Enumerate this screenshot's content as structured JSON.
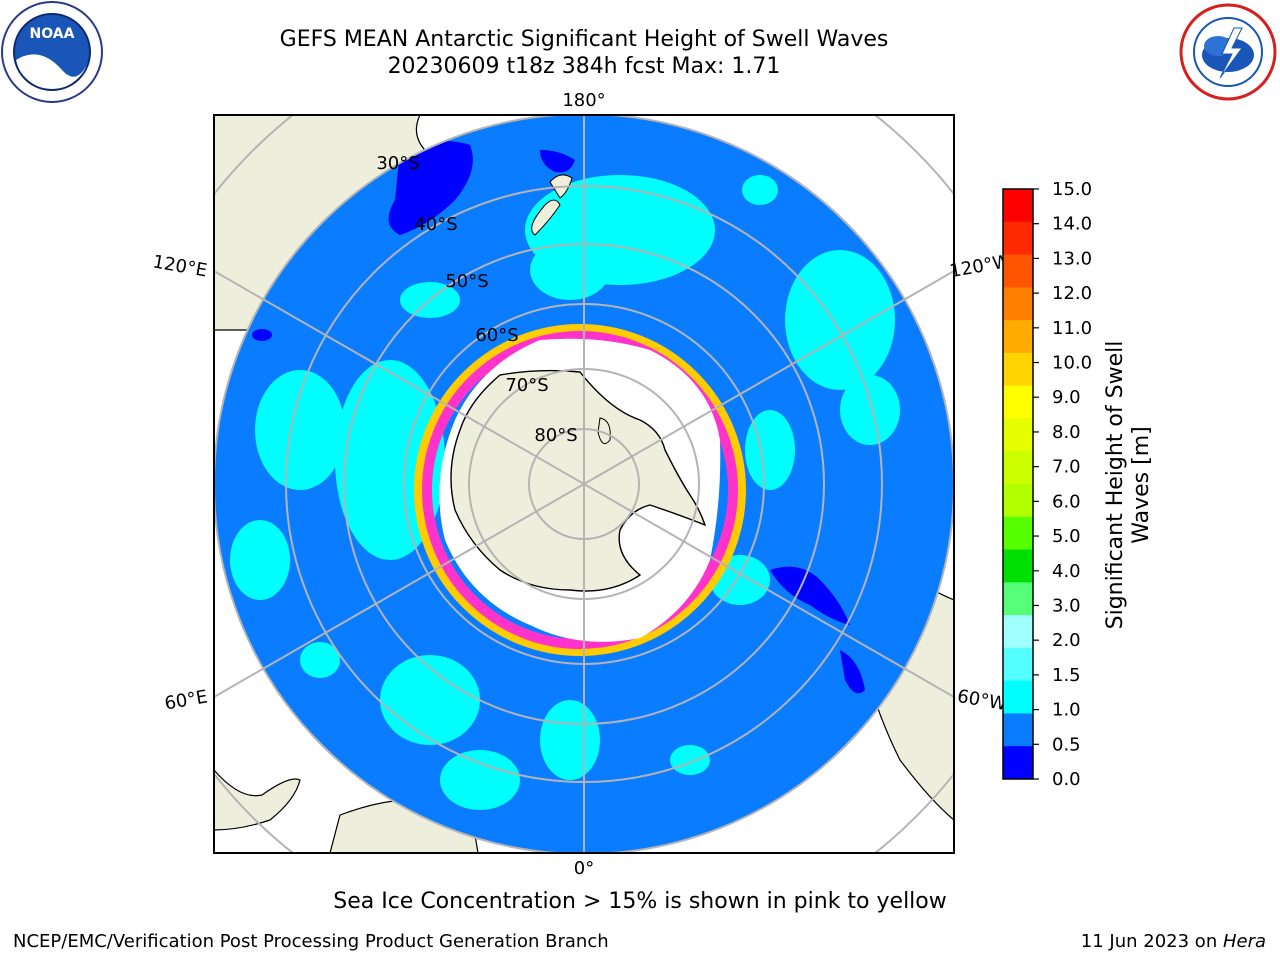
{
  "header": {
    "title_line1": "GEFS MEAN Antarctic Significant Height of Swell Waves",
    "title_line2": "20230609 t18z 384h fcst   Max: 1.71"
  },
  "logos": {
    "left": "noaa-logo",
    "right": "national-weather-service-logo"
  },
  "map": {
    "projection": "south-polar-stereographic",
    "longitude_labels": {
      "top": "180°",
      "bottom": "0°",
      "upper_left": "120°E",
      "lower_left": "60°E",
      "upper_right": "120°W",
      "lower_right": "60°W"
    },
    "latitude_labels": [
      "30°S",
      "40°S",
      "50°S",
      "60°S",
      "70°S",
      "80°S"
    ],
    "colors": {
      "ocean": "#0a7cff",
      "swell_1_1_5": "#00ffff",
      "swell_0_0_5": "#0000ff",
      "land": "#eeeedc",
      "ice_pink": "#ff33cc",
      "ice_yellow": "#ffcc00",
      "graticule": "#b4b4b4"
    }
  },
  "colorbar": {
    "label_line1": "Significant Height of Swell",
    "label_line2": "Waves [m]",
    "ticks": [
      "15.0",
      "14.0",
      "13.0",
      "12.0",
      "11.0",
      "10.0",
      "9.0",
      "8.0",
      "7.0",
      "6.0",
      "5.0",
      "4.0",
      "3.0",
      "2.0",
      "1.5",
      "1.0",
      "0.5",
      "0.0"
    ],
    "colors": [
      "#ff0000",
      "#ff2a00",
      "#ff5500",
      "#ff7f00",
      "#ffaa00",
      "#ffd400",
      "#ffff00",
      "#e5ff00",
      "#ccff00",
      "#b2ff00",
      "#55ff00",
      "#00e000",
      "#55ff77",
      "#a0ffff",
      "#55ffff",
      "#00ffff",
      "#0a7cff",
      "#0000ff"
    ]
  },
  "note": "Sea Ice Concentration > 15% is shown in pink to yellow",
  "footer": {
    "left": "NCEP/EMC/Verification Post Processing Product Generation Branch",
    "right_date": "11 Jun 2023 on ",
    "right_host": "Hera"
  }
}
